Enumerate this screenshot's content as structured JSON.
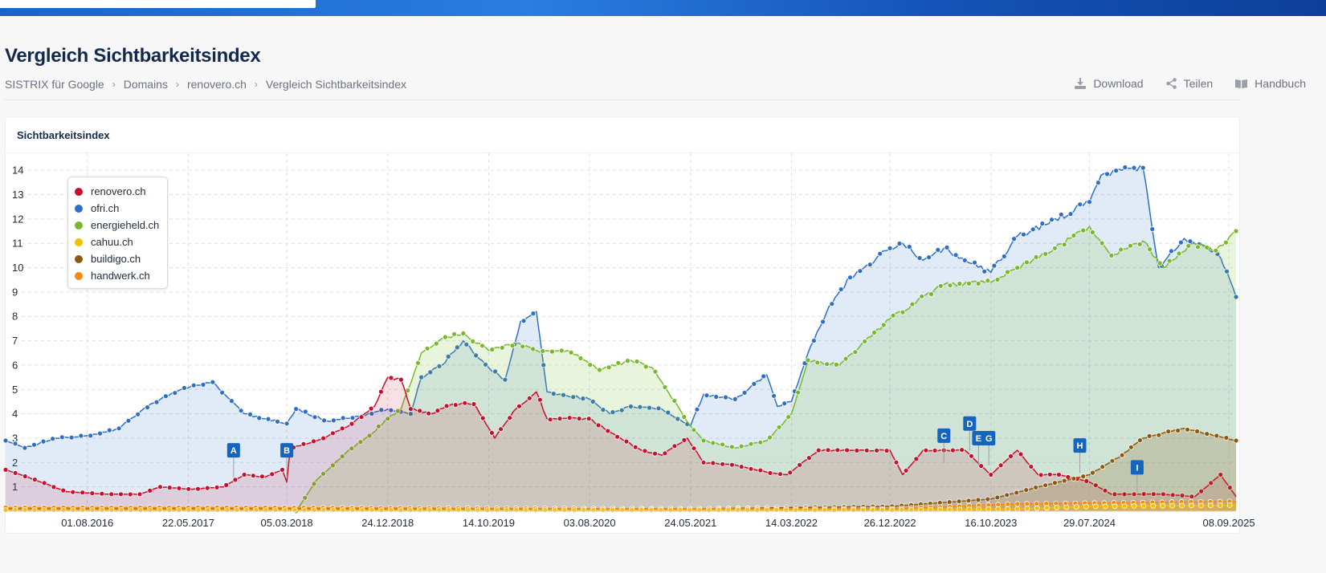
{
  "page": {
    "title": "Vergleich Sichtbarkeitsindex",
    "breadcrumb": [
      "SISTRIX für Google",
      "Domains",
      "renovero.ch",
      "Vergleich Sichtbarkeitsindex"
    ],
    "actions": {
      "download": "Download",
      "share": "Teilen",
      "manual": "Handbuch"
    }
  },
  "card": {
    "title": "Sichtbarkeitsindex"
  },
  "chart_data": {
    "type": "area",
    "title": "Sichtbarkeitsindex",
    "xlabel": "",
    "ylabel": "",
    "y_ticks": [
      1,
      2,
      3,
      4,
      5,
      6,
      7,
      8,
      9,
      10,
      11,
      12,
      13,
      14
    ],
    "ylim": [
      0,
      14.5
    ],
    "x_range": [
      "2015-12-07",
      "2025-09-29"
    ],
    "x_tick_labels": [
      "01.08.2016",
      "22.05.2017",
      "05.03.2018",
      "24.12.2018",
      "14.10.2019",
      "03.08.2020",
      "24.05.2021",
      "14.03.2022",
      "26.12.2022",
      "16.10.2023",
      "29.07.2024",
      "08.09.2025"
    ],
    "grid": true,
    "legend_position": "top-left",
    "series": [
      {
        "name": "renovero.ch",
        "color": "#c8102e",
        "points": [
          [
            "2015-12-07",
            1.7
          ],
          [
            "2016-03-01",
            1.3
          ],
          [
            "2016-06-01",
            0.8
          ],
          [
            "2016-10-01",
            0.7
          ],
          [
            "2017-01-01",
            0.7
          ],
          [
            "2017-03-01",
            1.0
          ],
          [
            "2017-06-01",
            0.9
          ],
          [
            "2017-09-01",
            1.0
          ],
          [
            "2017-11-01",
            1.5
          ],
          [
            "2018-01-01",
            1.4
          ],
          [
            "2018-02-20",
            1.7
          ],
          [
            "2018-03-05",
            1.2
          ],
          [
            "2018-03-15",
            2.6
          ],
          [
            "2018-06-01",
            2.9
          ],
          [
            "2018-09-01",
            3.5
          ],
          [
            "2018-11-15",
            4.3
          ],
          [
            "2018-12-24",
            5.5
          ],
          [
            "2019-02-01",
            5.4
          ],
          [
            "2019-03-01",
            4.2
          ],
          [
            "2019-05-01",
            4.0
          ],
          [
            "2019-07-01",
            4.4
          ],
          [
            "2019-09-01",
            4.4
          ],
          [
            "2019-11-01",
            3.0
          ],
          [
            "2020-01-01",
            4.2
          ],
          [
            "2020-03-01",
            4.9
          ],
          [
            "2020-04-01",
            3.8
          ],
          [
            "2020-08-01",
            3.8
          ],
          [
            "2020-11-01",
            3.0
          ],
          [
            "2021-01-01",
            2.5
          ],
          [
            "2021-03-01",
            2.3
          ],
          [
            "2021-05-15",
            3.0
          ],
          [
            "2021-07-01",
            2.0
          ],
          [
            "2021-10-01",
            1.9
          ],
          [
            "2022-01-01",
            1.6
          ],
          [
            "2022-03-01",
            1.5
          ],
          [
            "2022-06-01",
            2.5
          ],
          [
            "2022-09-01",
            2.5
          ],
          [
            "2022-12-26",
            2.5
          ],
          [
            "2023-02-01",
            1.5
          ],
          [
            "2023-04-01",
            2.5
          ],
          [
            "2023-06-01",
            2.5
          ],
          [
            "2023-08-01",
            2.5
          ],
          [
            "2023-10-16",
            1.5
          ],
          [
            "2024-01-01",
            2.5
          ],
          [
            "2024-03-01",
            1.5
          ],
          [
            "2024-05-01",
            1.5
          ],
          [
            "2024-07-29",
            1.2
          ],
          [
            "2024-10-01",
            0.7
          ],
          [
            "2025-03-01",
            0.7
          ],
          [
            "2025-06-01",
            0.6
          ],
          [
            "2025-08-15",
            1.5
          ],
          [
            "2025-09-29",
            0.6
          ]
        ]
      },
      {
        "name": "ofri.ch",
        "color": "#2e6fc6",
        "points": [
          [
            "2015-12-07",
            2.9
          ],
          [
            "2016-02-01",
            2.6
          ],
          [
            "2016-05-01",
            3.0
          ],
          [
            "2016-08-01",
            3.1
          ],
          [
            "2016-11-01",
            3.4
          ],
          [
            "2017-02-01",
            4.4
          ],
          [
            "2017-05-01",
            5.0
          ],
          [
            "2017-08-01",
            5.3
          ],
          [
            "2017-11-01",
            4.0
          ],
          [
            "2018-01-01",
            3.8
          ],
          [
            "2018-03-05",
            3.6
          ],
          [
            "2018-04-01",
            4.2
          ],
          [
            "2018-07-01",
            3.7
          ],
          [
            "2018-10-01",
            3.9
          ],
          [
            "2018-12-24",
            4.2
          ],
          [
            "2019-03-01",
            4.0
          ],
          [
            "2019-04-01",
            5.5
          ],
          [
            "2019-06-01",
            6.0
          ],
          [
            "2019-08-01",
            7.0
          ],
          [
            "2019-10-14",
            5.9
          ],
          [
            "2019-12-01",
            5.4
          ],
          [
            "2020-01-15",
            7.8
          ],
          [
            "2020-03-01",
            8.2
          ],
          [
            "2020-04-01",
            4.9
          ],
          [
            "2020-08-03",
            4.6
          ],
          [
            "2020-10-01",
            4.0
          ],
          [
            "2020-12-01",
            4.3
          ],
          [
            "2021-03-01",
            4.2
          ],
          [
            "2021-05-24",
            3.5
          ],
          [
            "2021-07-01",
            4.8
          ],
          [
            "2021-10-01",
            4.6
          ],
          [
            "2022-01-01",
            5.6
          ],
          [
            "2022-02-01",
            4.3
          ],
          [
            "2022-03-14",
            4.5
          ],
          [
            "2022-05-01",
            6.5
          ],
          [
            "2022-07-01",
            8.4
          ],
          [
            "2022-09-01",
            9.6
          ],
          [
            "2022-12-26",
            10.8
          ],
          [
            "2023-02-01",
            11.0
          ],
          [
            "2023-04-01",
            10.3
          ],
          [
            "2023-06-01",
            10.8
          ],
          [
            "2023-08-01",
            10.3
          ],
          [
            "2023-10-16",
            9.8
          ],
          [
            "2024-01-01",
            11.3
          ],
          [
            "2024-04-01",
            11.8
          ],
          [
            "2024-07-29",
            12.7
          ],
          [
            "2024-09-01",
            13.8
          ],
          [
            "2024-11-01",
            14.0
          ],
          [
            "2025-01-01",
            14.1
          ],
          [
            "2025-02-15",
            10.0
          ],
          [
            "2025-05-01",
            11.2
          ],
          [
            "2025-07-01",
            10.9
          ],
          [
            "2025-08-15",
            10.4
          ],
          [
            "2025-09-29",
            8.8
          ]
        ]
      },
      {
        "name": "energieheld.ch",
        "color": "#78b82a",
        "points": [
          [
            "2018-04-01",
            0.0
          ],
          [
            "2018-06-01",
            1.3
          ],
          [
            "2018-09-01",
            2.5
          ],
          [
            "2018-11-01",
            3.1
          ],
          [
            "2018-12-24",
            3.8
          ],
          [
            "2019-02-01",
            4.2
          ],
          [
            "2019-04-01",
            6.5
          ],
          [
            "2019-06-01",
            7.1
          ],
          [
            "2019-08-01",
            7.3
          ],
          [
            "2019-10-14",
            6.6
          ],
          [
            "2020-01-01",
            6.9
          ],
          [
            "2020-03-01",
            6.6
          ],
          [
            "2020-06-01",
            6.6
          ],
          [
            "2020-09-01",
            5.8
          ],
          [
            "2020-12-01",
            6.2
          ],
          [
            "2021-02-01",
            5.9
          ],
          [
            "2021-05-24",
            3.5
          ],
          [
            "2021-07-01",
            2.9
          ],
          [
            "2021-10-01",
            2.6
          ],
          [
            "2022-01-01",
            2.9
          ],
          [
            "2022-03-14",
            4.0
          ],
          [
            "2022-05-01",
            6.2
          ],
          [
            "2022-08-01",
            6.0
          ],
          [
            "2022-12-26",
            7.9
          ],
          [
            "2023-03-01",
            8.5
          ],
          [
            "2023-06-01",
            9.3
          ],
          [
            "2023-10-16",
            9.4
          ],
          [
            "2024-01-01",
            10.0
          ],
          [
            "2024-04-01",
            10.6
          ],
          [
            "2024-07-29",
            11.7
          ],
          [
            "2024-10-01",
            10.5
          ],
          [
            "2025-01-01",
            11.1
          ],
          [
            "2025-03-01",
            10.0
          ],
          [
            "2025-06-01",
            11.0
          ],
          [
            "2025-08-01",
            10.7
          ],
          [
            "2025-09-29",
            11.5
          ]
        ]
      },
      {
        "name": "cahuu.ch",
        "color": "#f2c200",
        "points": [
          [
            "2015-12-07",
            0.05
          ],
          [
            "2023-01-01",
            0.05
          ],
          [
            "2024-01-01",
            0.1
          ],
          [
            "2024-07-29",
            0.2
          ],
          [
            "2025-09-29",
            0.25
          ]
        ]
      },
      {
        "name": "buildigo.ch",
        "color": "#8a5a10",
        "points": [
          [
            "2015-12-07",
            0.1
          ],
          [
            "2021-06-01",
            0.1
          ],
          [
            "2023-01-01",
            0.2
          ],
          [
            "2023-10-16",
            0.5
          ],
          [
            "2024-04-01",
            1.1
          ],
          [
            "2024-07-29",
            1.5
          ],
          [
            "2024-11-01",
            2.3
          ],
          [
            "2025-01-01",
            3.0
          ],
          [
            "2025-05-01",
            3.4
          ],
          [
            "2025-09-29",
            2.9
          ]
        ]
      },
      {
        "name": "handwerk.ch",
        "color": "#f08a10",
        "points": [
          [
            "2015-12-07",
            0.15
          ],
          [
            "2018-01-01",
            0.15
          ],
          [
            "2021-01-01",
            0.1
          ],
          [
            "2023-01-01",
            0.1
          ],
          [
            "2024-01-01",
            0.3
          ],
          [
            "2025-09-29",
            0.4
          ]
        ]
      }
    ],
    "annotations": [
      {
        "label": "A",
        "x": "2017-10-01",
        "y": 2.5
      },
      {
        "label": "B",
        "x": "2018-03-05",
        "y": 2.5
      },
      {
        "label": "C",
        "x": "2023-06-01",
        "y": 3.1
      },
      {
        "label": "D",
        "x": "2023-08-15",
        "y": 3.6
      },
      {
        "label": "E",
        "x": "2023-09-10",
        "y": 3.0
      },
      {
        "label": "G",
        "x": "2023-10-10",
        "y": 3.0
      },
      {
        "label": "H",
        "x": "2024-07-01",
        "y": 2.7
      },
      {
        "label": "I",
        "x": "2024-12-15",
        "y": 1.8
      }
    ]
  }
}
